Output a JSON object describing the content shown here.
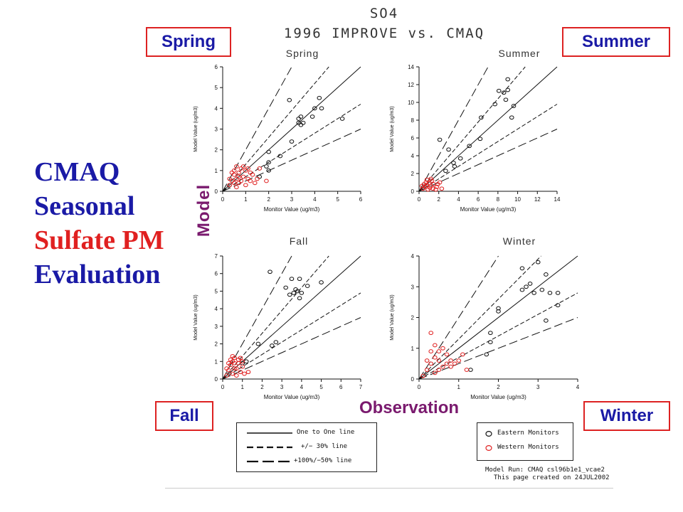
{
  "header": {
    "title_line1": "SO4",
    "title_line2": "1996 IMPROVE vs. CMAQ"
  },
  "season_boxes": {
    "spring": "Spring",
    "summer": "Summer",
    "fall": "Fall",
    "winter": "Winter"
  },
  "big_title": {
    "line1": "CMAQ",
    "line2": "Seasonal",
    "line3": "Sulfate PM",
    "line4": "Evaluation"
  },
  "axis_big": {
    "model": "Model",
    "observation": "Observation"
  },
  "legend": {
    "one_to_one": "One to One line",
    "pm30": "+/− 30% line",
    "pm100_50": "+100%/−50% line",
    "eastern": "Eastern Monitors",
    "western": "Western Monitors"
  },
  "footer": {
    "line1": "Model Run: CMAQ csl96b1e1_vcae2",
    "line2": "This page created on 24JUL2002"
  },
  "colors": {
    "eastern": "#111111",
    "western": "#e02020",
    "box_border": "#dd2222",
    "box_text": "#1a1aa6",
    "title_blue": "#1a1aa6",
    "title_red": "#e02020",
    "axis_label_purple": "#7a1a6e"
  },
  "chart_data": [
    {
      "type": "scatter",
      "title": "Spring",
      "xlabel": "Monitor Value (ug/m3)",
      "ylabel": "Model Value (ug/m3)",
      "xlim": [
        0,
        6
      ],
      "ylim": [
        0,
        6
      ],
      "xticks": [
        0,
        1,
        2,
        3,
        4,
        5,
        6
      ],
      "yticks": [
        0,
        1,
        2,
        3,
        4,
        5,
        6
      ],
      "series": [
        {
          "name": "Eastern Monitors",
          "points": [
            [
              2.9,
              4.4
            ],
            [
              3.3,
              3.5
            ],
            [
              3.4,
              3.6
            ],
            [
              3.5,
              3.3
            ],
            [
              3.4,
              3.2
            ],
            [
              3.3,
              3.3
            ],
            [
              3.9,
              3.6
            ],
            [
              4.0,
              4.0
            ],
            [
              4.2,
              4.5
            ],
            [
              4.3,
              4.0
            ],
            [
              5.2,
              3.5
            ],
            [
              2.0,
              1.9
            ],
            [
              2.0,
              1.4
            ],
            [
              2.5,
              1.7
            ],
            [
              3.0,
              2.4
            ],
            [
              1.6,
              0.7
            ],
            [
              1.9,
              1.2
            ],
            [
              2.0,
              1.0
            ]
          ]
        },
        {
          "name": "Western Monitors",
          "points": [
            [
              0.3,
              0.3
            ],
            [
              0.4,
              0.5
            ],
            [
              0.5,
              0.8
            ],
            [
              0.6,
              1.2
            ],
            [
              0.7,
              0.9
            ],
            [
              0.8,
              1.1
            ],
            [
              0.9,
              0.7
            ],
            [
              1.0,
              1.0
            ],
            [
              1.1,
              0.6
            ],
            [
              1.2,
              0.9
            ],
            [
              0.5,
              0.4
            ],
            [
              0.6,
              0.6
            ],
            [
              0.7,
              0.4
            ],
            [
              0.8,
              0.5
            ],
            [
              0.4,
              0.9
            ],
            [
              0.9,
              1.2
            ],
            [
              1.3,
              0.8
            ],
            [
              1.5,
              0.6
            ],
            [
              1.0,
              0.3
            ],
            [
              1.4,
              0.4
            ],
            [
              1.9,
              0.5
            ],
            [
              0.6,
              0.2
            ],
            [
              0.3,
              0.6
            ],
            [
              1.2,
              0.5
            ],
            [
              0.7,
              0.7
            ],
            [
              1.6,
              1.1
            ],
            [
              0.5,
              1.0
            ],
            [
              1.1,
              1.1
            ]
          ]
        }
      ]
    },
    {
      "type": "scatter",
      "title": "Summer",
      "xlabel": "Monitor Value (ug/m3)",
      "ylabel": "Model Value (ug/m3)",
      "xlim": [
        0,
        14
      ],
      "ylim": [
        0,
        14
      ],
      "xticks": [
        0,
        2,
        4,
        6,
        8,
        10,
        12,
        14
      ],
      "yticks": [
        0,
        2,
        4,
        6,
        8,
        10,
        12,
        14
      ],
      "series": [
        {
          "name": "Eastern Monitors",
          "points": [
            [
              2.1,
              5.8
            ],
            [
              3.0,
              4.7
            ],
            [
              3.5,
              3.2
            ],
            [
              3.6,
              2.8
            ],
            [
              2.7,
              2.3
            ],
            [
              4.2,
              3.7
            ],
            [
              5.1,
              5.1
            ],
            [
              6.3,
              8.3
            ],
            [
              6.2,
              5.9
            ],
            [
              7.7,
              9.8
            ],
            [
              8.1,
              11.3
            ],
            [
              8.6,
              11.1
            ],
            [
              8.8,
              10.3
            ],
            [
              9.0,
              11.4
            ],
            [
              9.0,
              12.6
            ],
            [
              9.6,
              9.6
            ],
            [
              9.4,
              8.3
            ]
          ]
        },
        {
          "name": "Western Monitors",
          "points": [
            [
              0.4,
              0.3
            ],
            [
              0.6,
              0.5
            ],
            [
              0.8,
              0.7
            ],
            [
              1.0,
              0.9
            ],
            [
              1.2,
              0.6
            ],
            [
              0.7,
              1.0
            ],
            [
              0.9,
              0.2
            ],
            [
              1.3,
              1.2
            ],
            [
              1.5,
              0.8
            ],
            [
              1.1,
              0.4
            ],
            [
              0.5,
              0.8
            ],
            [
              1.8,
              0.5
            ],
            [
              2.1,
              1.0
            ],
            [
              2.3,
              0.3
            ],
            [
              1.7,
              0.2
            ],
            [
              0.3,
              0.6
            ],
            [
              1.4,
              0.3
            ],
            [
              1.9,
              0.8
            ],
            [
              0.8,
              1.3
            ],
            [
              1.2,
              1.4
            ]
          ]
        }
      ]
    },
    {
      "type": "scatter",
      "title": "Fall",
      "xlabel": "Monitor Value (ug/m3)",
      "ylabel": "Model Value (ug/m3)",
      "xlim": [
        0,
        7
      ],
      "ylim": [
        0,
        7
      ],
      "xticks": [
        0,
        1,
        2,
        3,
        4,
        5,
        6,
        7
      ],
      "yticks": [
        0,
        1,
        2,
        3,
        4,
        5,
        6,
        7
      ],
      "series": [
        {
          "name": "Eastern Monitors",
          "points": [
            [
              2.4,
              6.1
            ],
            [
              3.2,
              5.2
            ],
            [
              3.4,
              4.8
            ],
            [
              3.5,
              5.7
            ],
            [
              3.6,
              4.9
            ],
            [
              3.7,
              5.1
            ],
            [
              3.8,
              5.0
            ],
            [
              3.9,
              5.7
            ],
            [
              3.9,
              4.6
            ],
            [
              4.0,
              4.9
            ],
            [
              4.3,
              5.3
            ],
            [
              5.0,
              5.5
            ],
            [
              2.5,
              1.9
            ],
            [
              2.7,
              2.1
            ],
            [
              1.8,
              2.0
            ],
            [
              1.0,
              0.9
            ],
            [
              1.2,
              1.0
            ]
          ]
        },
        {
          "name": "Western Monitors",
          "points": [
            [
              0.2,
              0.2
            ],
            [
              0.3,
              0.5
            ],
            [
              0.4,
              0.8
            ],
            [
              0.5,
              1.0
            ],
            [
              0.6,
              1.2
            ],
            [
              0.7,
              0.6
            ],
            [
              0.8,
              0.9
            ],
            [
              0.9,
              0.4
            ],
            [
              1.0,
              0.7
            ],
            [
              0.5,
              0.3
            ],
            [
              0.6,
              0.6
            ],
            [
              0.8,
              1.1
            ],
            [
              0.4,
              1.1
            ],
            [
              1.1,
              0.3
            ],
            [
              1.3,
              0.4
            ],
            [
              0.3,
              0.9
            ],
            [
              0.7,
              0.2
            ],
            [
              0.9,
              1.2
            ],
            [
              0.6,
              0.9
            ],
            [
              1.0,
              1.0
            ],
            [
              0.5,
              1.3
            ],
            [
              0.2,
              0.6
            ]
          ]
        }
      ]
    },
    {
      "type": "scatter",
      "title": "Winter",
      "xlabel": "Monitor Value (ug/m3)",
      "ylabel": "Model Value (ug/m3)",
      "xlim": [
        0,
        4
      ],
      "ylim": [
        0,
        4
      ],
      "xticks": [
        0,
        1,
        2,
        3,
        4
      ],
      "yticks": [
        0,
        1,
        2,
        3,
        4
      ],
      "series": [
        {
          "name": "Eastern Monitors",
          "points": [
            [
              2.6,
              3.6
            ],
            [
              3.0,
              3.8
            ],
            [
              2.6,
              2.9
            ],
            [
              2.7,
              3.0
            ],
            [
              2.8,
              3.1
            ],
            [
              2.9,
              2.8
            ],
            [
              3.1,
              2.9
            ],
            [
              3.2,
              3.4
            ],
            [
              3.3,
              2.8
            ],
            [
              3.5,
              2.8
            ],
            [
              3.5,
              2.4
            ],
            [
              3.2,
              1.9
            ],
            [
              2.0,
              2.2
            ],
            [
              2.0,
              2.3
            ],
            [
              1.8,
              1.5
            ],
            [
              1.8,
              1.2
            ],
            [
              1.7,
              0.8
            ],
            [
              1.3,
              0.3
            ]
          ]
        },
        {
          "name": "Western Monitors",
          "points": [
            [
              0.1,
              0.1
            ],
            [
              0.2,
              0.3
            ],
            [
              0.3,
              0.5
            ],
            [
              0.4,
              0.7
            ],
            [
              0.5,
              0.9
            ],
            [
              0.3,
              1.5
            ],
            [
              0.4,
              1.1
            ],
            [
              0.6,
              1.0
            ],
            [
              0.7,
              0.8
            ],
            [
              0.8,
              0.6
            ],
            [
              0.5,
              0.3
            ],
            [
              0.2,
              0.6
            ],
            [
              0.6,
              0.4
            ],
            [
              0.9,
              0.5
            ],
            [
              1.0,
              0.6
            ],
            [
              1.1,
              0.8
            ],
            [
              1.2,
              0.3
            ],
            [
              0.4,
              0.2
            ],
            [
              0.3,
              0.9
            ],
            [
              0.7,
              0.5
            ],
            [
              0.5,
              0.6
            ],
            [
              0.8,
              0.4
            ]
          ]
        }
      ]
    }
  ]
}
